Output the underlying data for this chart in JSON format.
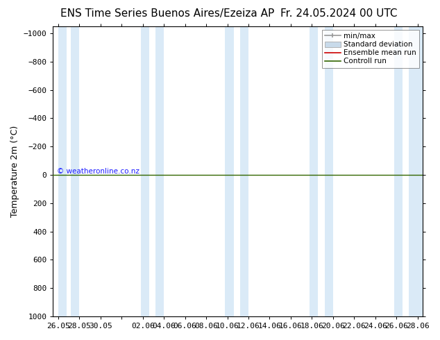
{
  "title_left": "ENS Time Series Buenos Aires/Ezeiza AP",
  "title_right": "Fr. 24.05.2024 00 UTC",
  "ylabel": "Temperature 2m (°C)",
  "copyright": "© weatheronline.co.nz",
  "ylim_bottom": 1000,
  "ylim_top": -1050,
  "yticks": [
    -1000,
    -800,
    -600,
    -400,
    -200,
    0,
    200,
    400,
    600,
    800,
    1000
  ],
  "xtick_labels": [
    "26.05",
    "28.05",
    "30.05",
    "",
    "02.06",
    "04.06",
    "06.06",
    "08.06",
    "10.06",
    "12.06",
    "14.06",
    "16.06",
    "18.06",
    "20.06",
    "22.06",
    "24.06",
    "26.06",
    "28.06"
  ],
  "x_positions": [
    0,
    2,
    4,
    6,
    8,
    10,
    12,
    14,
    16,
    18,
    20,
    22,
    24,
    26,
    28,
    30,
    32,
    34
  ],
  "xmin": -0.5,
  "xmax": 34.5,
  "green_line_y": 0,
  "blue_band_color": "#daeaf7",
  "blue_band_pairs": [
    [
      0.0,
      0.8
    ],
    [
      1.2,
      2.0
    ],
    [
      7.8,
      8.6
    ],
    [
      9.2,
      10.0
    ],
    [
      15.8,
      16.6
    ],
    [
      17.2,
      18.0
    ],
    [
      23.8,
      24.6
    ],
    [
      25.2,
      26.0
    ],
    [
      31.8,
      32.6
    ],
    [
      33.2,
      34.5
    ]
  ],
  "legend_labels": [
    "min/max",
    "Standard deviation",
    "Ensemble mean run",
    "Controll run"
  ],
  "legend_line_color": "#999999",
  "legend_std_color": "#c8daea",
  "legend_ens_color": "#cc0000",
  "legend_ctrl_color": "#336600",
  "bg_color": "#ffffff",
  "axes_color": "#000000",
  "title_fontsize": 11,
  "tick_fontsize": 8,
  "ylabel_fontsize": 9,
  "copyright_color": "#1a1aff"
}
